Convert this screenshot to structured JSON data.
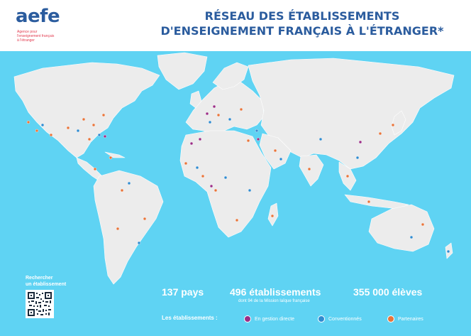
{
  "logo": {
    "word": "aefe",
    "tagline_lines": [
      "Agence pour",
      "l'enseignement français",
      "à l'étranger"
    ]
  },
  "title": {
    "line1": "RÉSEAU DES ÉTABLISSEMENTS",
    "line2": "D'ENSEIGNEMENT FRANÇAIS À L'ÉTRANGER*"
  },
  "stats": {
    "countries": "137 pays",
    "schools": "496 établissements",
    "schools_note": "dont 94 de la Mission laïque française",
    "students": "355 000 élèves"
  },
  "legend": {
    "label": "Les établissements :",
    "items": [
      {
        "label": "En gestion directe",
        "color": "#9b2d86"
      },
      {
        "label": "Conventionnés",
        "color": "#2f8bd0"
      },
      {
        "label": "Partenaires",
        "color": "#e8743a"
      }
    ]
  },
  "qr": {
    "label_line1": "Rechercher",
    "label_line2": "un établissement",
    "icon": "qr-code-icon"
  },
  "colors": {
    "ocean": "#5fd3f3",
    "land": "#ececec",
    "brand_blue": "#2b5c9e",
    "brand_red": "#e23b4f"
  }
}
